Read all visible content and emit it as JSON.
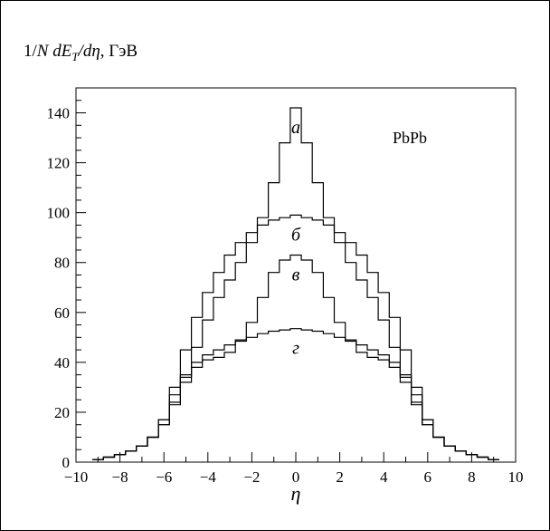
{
  "chart_data": {
    "type": "line",
    "title": "",
    "ylabel_parts": {
      "a": "1/",
      "b": "N dE",
      "c": "T",
      "d": "/d",
      "e": "η",
      "f": ", ГэВ"
    },
    "xlabel": "η",
    "system_label": "PbPb",
    "xlim": [
      -10,
      10
    ],
    "ylim": [
      0,
      150
    ],
    "xticks": [
      -10,
      -8,
      -6,
      -4,
      -2,
      0,
      2,
      4,
      6,
      8,
      10
    ],
    "xtick_labels": [
      "−10",
      "−8",
      "−6",
      "−4",
      "−2",
      "0",
      "2",
      "4",
      "6",
      "8",
      "10"
    ],
    "yticks": [
      0,
      20,
      40,
      60,
      80,
      100,
      120,
      140
    ],
    "ytick_labels": [
      "0",
      "20",
      "40",
      "60",
      "80",
      "100",
      "120",
      "140"
    ],
    "grid": false,
    "legend": "none",
    "x": [
      -9,
      -8.5,
      -8,
      -7.5,
      -7,
      -6.5,
      -6,
      -5.5,
      -5,
      -4.5,
      -4,
      -3.5,
      -3,
      -2.5,
      -2,
      -1.5,
      -1,
      -0.5,
      0,
      0.5,
      1,
      1.5,
      2,
      2.5,
      3,
      3.5,
      4,
      4.5,
      5,
      5.5,
      6,
      6.5,
      7,
      7.5,
      8,
      8.5,
      9
    ],
    "series": [
      {
        "label": "а",
        "values": [
          1,
          2,
          3,
          4.5,
          6.5,
          10,
          15,
          24,
          34,
          46,
          57,
          66,
          73,
          80,
          88,
          98,
          112,
          128,
          142,
          128,
          112,
          98,
          88,
          80,
          73,
          66,
          57,
          46,
          34,
          24,
          15,
          10,
          6.5,
          4.5,
          3,
          2,
          1
        ]
      },
      {
        "label": "б",
        "values": [
          1,
          2,
          3,
          4.5,
          6.5,
          10,
          17,
          30,
          45,
          58,
          68,
          76,
          83,
          88,
          92,
          95,
          97,
          98,
          99,
          98,
          97,
          95,
          92,
          88,
          83,
          76,
          68,
          58,
          45,
          30,
          17,
          10,
          6.5,
          4.5,
          3,
          2,
          1
        ]
      },
      {
        "label": "в",
        "values": [
          1,
          2,
          3,
          4.5,
          6.5,
          10,
          15,
          23,
          32,
          38,
          41,
          42,
          44,
          49,
          56,
          66,
          76,
          81,
          83,
          81,
          76,
          66,
          56,
          49,
          44,
          42,
          41,
          38,
          32,
          23,
          15,
          10,
          6.5,
          4.5,
          3,
          2,
          1
        ]
      },
      {
        "label": "г",
        "values": [
          1,
          2,
          3,
          4.5,
          6.5,
          10,
          17,
          27,
          35,
          40,
          43,
          45,
          47,
          48.5,
          50,
          51.5,
          52.5,
          53,
          53.5,
          53,
          52.5,
          51.5,
          50,
          48.5,
          47,
          45,
          43,
          40,
          35,
          27,
          17,
          10,
          6.5,
          4.5,
          3,
          2,
          1
        ]
      }
    ]
  }
}
